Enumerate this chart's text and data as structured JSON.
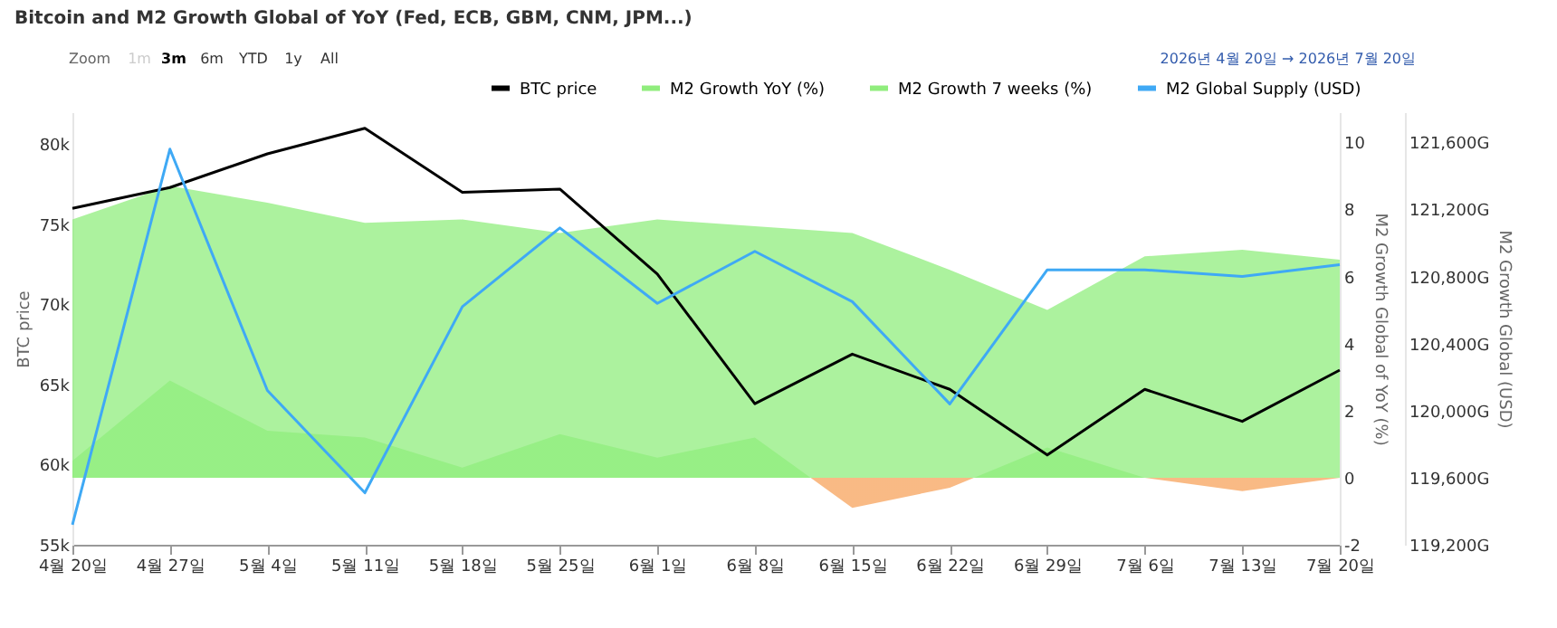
{
  "chart_data": {
    "type": "line",
    "title": "Bitcoin and M2 Growth Global of YoY (Fed, ECB, GBM, CNM, JPM...)",
    "annotations": [
      "Zoom",
      "1m",
      "3m",
      "6m",
      "YTD",
      "1y",
      "All",
      "2026년 4월 20일  →  2026년 7월 20일"
    ],
    "categories": [
      "4월 20일",
      "4월 27일",
      "5월 4일",
      "5월 11일",
      "5월 18일",
      "5월 25일",
      "6월 1일",
      "6월 8일",
      "6월 15일",
      "6월 22일",
      "6월 29일",
      "7월 6일",
      "7월 13일",
      "7월 20일"
    ],
    "ylabel": "BTC price",
    "y2label": "M2 Growth Global of YoY (%)",
    "y3label": "M2 Growth Global (USD)",
    "ylim": [
      55000,
      82000
    ],
    "yticks": [
      {
        "value": 55000,
        "label": "55k"
      },
      {
        "value": 60000,
        "label": "60k"
      },
      {
        "value": 65000,
        "label": "65k"
      },
      {
        "value": 70000,
        "label": "70k"
      },
      {
        "value": 75000,
        "label": "75k"
      },
      {
        "value": 80000,
        "label": "80k"
      }
    ],
    "y2lim": [
      -2,
      10.9
    ],
    "y2ticks": [
      -2,
      0,
      2,
      4,
      6,
      8,
      10
    ],
    "y3lim": [
      119200,
      121780
    ],
    "y3ticks": [
      {
        "value": 119200,
        "label": "119,200G"
      },
      {
        "value": 119600,
        "label": "119,600G"
      },
      {
        "value": 120000,
        "label": "120,000G"
      },
      {
        "value": 120400,
        "label": "120,400G"
      },
      {
        "value": 120800,
        "label": "120,800G"
      },
      {
        "value": 121200,
        "label": "121,200G"
      },
      {
        "value": 121600,
        "label": "121,600G"
      }
    ],
    "legend": "top",
    "grid": false,
    "marker": "none",
    "series": [
      {
        "name": "BTC price",
        "color": "#000000",
        "values": [
          76000,
          77300,
          79400,
          81000,
          77000,
          77200,
          71900,
          63800,
          66900,
          64700,
          60600,
          64700,
          62700,
          65900
        ]
      },
      {
        "name": "M2 Growth YoY (%)",
        "type": "area",
        "axis": "y2",
        "color": "#90ed7d",
        "values": [
          7.7,
          8.7,
          8.2,
          7.6,
          7.7,
          7.3,
          7.7,
          7.5,
          7.3,
          6.2,
          5.0,
          6.6,
          6.8,
          6.5
        ]
      },
      {
        "name": "M2 Growth 7 weeks (%)",
        "type": "area",
        "axis": "y2",
        "color": "#90ed7d",
        "colors": [
          "#90ed7d",
          "#90ed7d",
          "#90ed7d",
          "#90ed7d",
          "#90ed7d",
          "#90ed7d",
          "#90ed7d",
          "#90ed7d",
          "#f7a35c",
          "#f7a35c",
          "#90ed7d",
          "#90ed7d",
          "#f7a35c",
          "#90ed7d"
        ],
        "values": [
          0.5,
          2.9,
          1.4,
          1.2,
          0.3,
          1.3,
          0.6,
          1.2,
          -0.9,
          -0.3,
          0.9,
          0.0,
          -0.4,
          0.0
        ]
      },
      {
        "name": "M2 Global Supply (USD)",
        "axis": "y3",
        "color": "#3fa9f5",
        "values": [
          119320,
          121560,
          120120,
          119510,
          120620,
          121090,
          120640,
          120950,
          120650,
          120040,
          120840,
          120840,
          120800,
          120870
        ]
      }
    ]
  }
}
